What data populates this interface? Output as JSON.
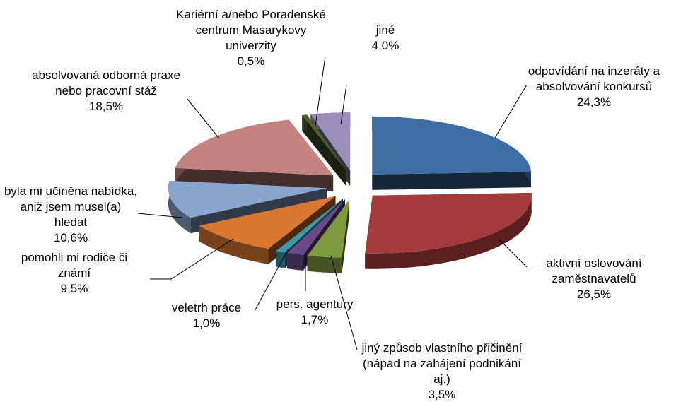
{
  "chart_data": {
    "type": "pie3d",
    "categories": [
      "odpovídání na inzeráty a absolvování konkursů",
      "aktivní oslovování zaměstnavatelů",
      "jiný způsob vlastního přičinění (nápad na zahájení podnikání aj.)",
      "pers. agentury",
      "veletrh práce",
      "pomohli mi rodiče či známí",
      "byla mi učiněna nabídka, aniž jsem musel(a) hledat",
      "absolvovaná odborná praxe nebo pracovní stáž",
      "Kariérní a/nebo Poradenské centrum Masarykovy univerzity",
      "jiné"
    ],
    "values": [
      24.3,
      26.5,
      3.5,
      1.7,
      1.0,
      9.5,
      10.6,
      18.5,
      0.5,
      4.0
    ],
    "value_labels": [
      "24,3%",
      "26,5%",
      "3,5%",
      "1,7%",
      "1,0%",
      "9,5%",
      "10,6%",
      "18,5%",
      "0,5%",
      "4,0%"
    ],
    "colors": [
      "#3e6ea5",
      "#a33b3a",
      "#7e9a3f",
      "#6a4a8a",
      "#3a9ab0",
      "#d9782e",
      "#8aa6d0",
      "#c48381",
      "#4f6130",
      "#9a8fba"
    ]
  }
}
